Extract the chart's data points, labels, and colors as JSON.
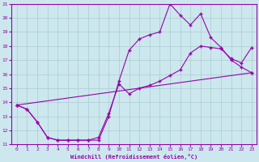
{
  "xlabel": "Windchill (Refroidissement éolien,°C)",
  "xlim": [
    -0.5,
    23.5
  ],
  "ylim": [
    11,
    21
  ],
  "xticks": [
    0,
    1,
    2,
    3,
    4,
    5,
    6,
    7,
    8,
    9,
    10,
    11,
    12,
    13,
    14,
    15,
    16,
    17,
    18,
    19,
    20,
    21,
    22,
    23
  ],
  "yticks": [
    11,
    12,
    13,
    14,
    15,
    16,
    17,
    18,
    19,
    20,
    21
  ],
  "line_color": "#9900aa",
  "bg_color": "#cce8ee",
  "grid_color": "#aaccd0",
  "line1_x": [
    0,
    1,
    2,
    3,
    4,
    5,
    6,
    7,
    8,
    9,
    10,
    11,
    12,
    13,
    14,
    15,
    16,
    17,
    18,
    19,
    20,
    21,
    22,
    23
  ],
  "line1_y": [
    13.8,
    13.5,
    12.6,
    11.5,
    11.3,
    11.3,
    11.3,
    11.3,
    11.3,
    13.0,
    15.5,
    17.7,
    18.5,
    18.8,
    19.0,
    21.0,
    20.2,
    19.5,
    20.3,
    18.6,
    17.9,
    17.0,
    16.5,
    16.1
  ],
  "line2_x": [
    0,
    1,
    2,
    3,
    4,
    5,
    6,
    7,
    8,
    9,
    10,
    11,
    12,
    13,
    14,
    15,
    16,
    17,
    18,
    19,
    20,
    21,
    22,
    23
  ],
  "line2_y": [
    13.8,
    13.5,
    12.6,
    11.5,
    11.3,
    11.3,
    11.3,
    11.3,
    11.5,
    13.2,
    15.3,
    14.6,
    15.0,
    15.2,
    15.5,
    15.9,
    16.3,
    17.5,
    18.0,
    17.9,
    17.8,
    17.1,
    16.8,
    17.9
  ],
  "line3_x": [
    0,
    23
  ],
  "line3_y": [
    13.8,
    16.1
  ]
}
